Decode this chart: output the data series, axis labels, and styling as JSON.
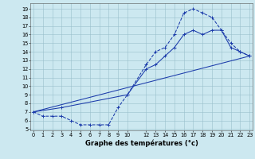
{
  "xlabel": "Graphe des températures (°c)",
  "bg_color": "#cce8f0",
  "grid_color": "#99bfcc",
  "line_color": "#1a3aaa",
  "curve1_x": [
    0,
    1,
    2,
    3,
    4,
    5,
    6,
    7,
    8,
    9,
    10,
    12,
    13,
    14,
    15,
    16,
    17,
    18,
    19,
    20,
    21,
    22,
    23
  ],
  "curve1_y": [
    7.0,
    6.5,
    6.5,
    6.5,
    6.0,
    5.5,
    5.5,
    5.5,
    5.5,
    7.5,
    9.0,
    12.5,
    14.0,
    14.5,
    16.0,
    18.5,
    19.0,
    18.5,
    18.0,
    16.5,
    15.0,
    14.0,
    13.5
  ],
  "curve2_x": [
    0,
    3,
    10,
    12,
    13,
    14,
    15,
    16,
    17,
    18,
    19,
    20,
    21,
    22,
    23
  ],
  "curve2_y": [
    7.0,
    7.5,
    9.0,
    12.0,
    12.5,
    13.5,
    14.5,
    16.0,
    16.5,
    16.0,
    16.5,
    16.5,
    14.5,
    14.0,
    13.5
  ],
  "curve3_x": [
    0,
    23
  ],
  "curve3_y": [
    7.0,
    13.5
  ],
  "xlim": [
    -0.3,
    23.3
  ],
  "ylim": [
    4.85,
    19.65
  ],
  "yticks": [
    5,
    6,
    7,
    8,
    9,
    10,
    11,
    12,
    13,
    14,
    15,
    16,
    17,
    18,
    19
  ],
  "xticks": [
    0,
    1,
    2,
    3,
    4,
    5,
    6,
    7,
    8,
    9,
    10,
    12,
    13,
    14,
    15,
    16,
    17,
    18,
    19,
    20,
    21,
    22,
    23
  ],
  "xlabel_fontsize": 6.0,
  "tick_fontsize": 4.8,
  "linewidth": 0.75,
  "markersize": 3.0
}
